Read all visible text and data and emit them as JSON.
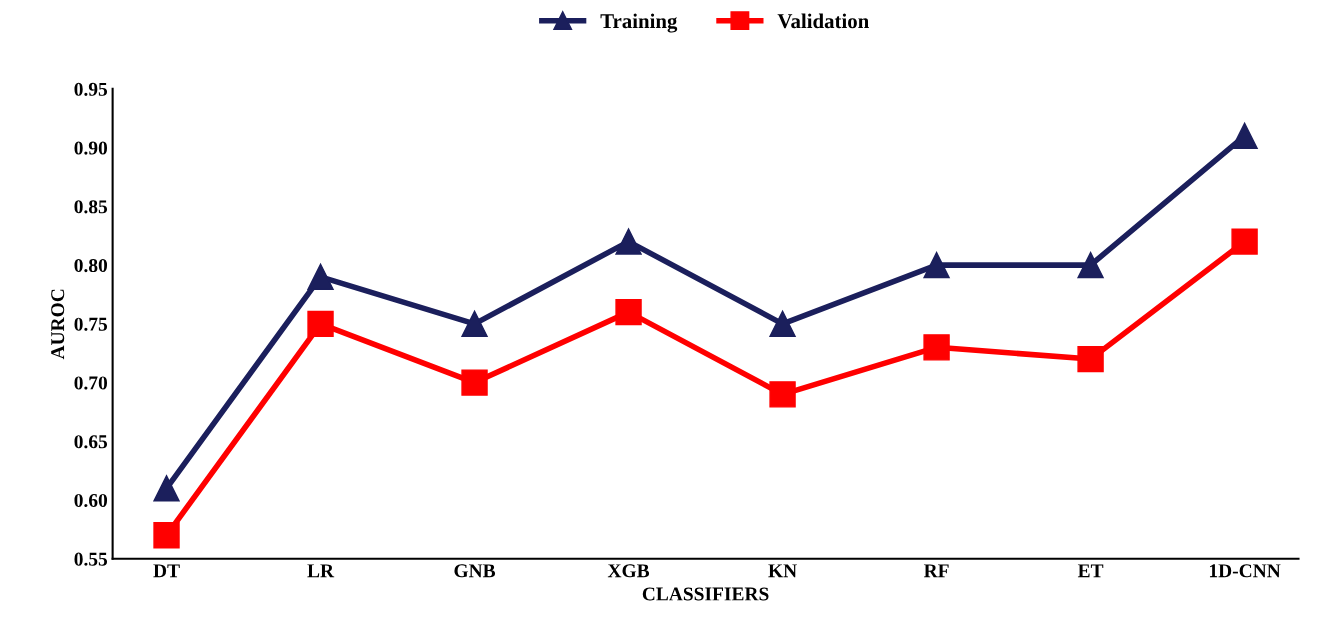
{
  "chart_data": {
    "type": "line",
    "xlabel": "CLASSIFIERS",
    "ylabel": "AUROC",
    "categories": [
      "DT",
      "LR",
      "GNB",
      "XGB",
      "KN",
      "RF",
      "ET",
      "1D-CNN"
    ],
    "series": [
      {
        "name": "Training",
        "color": "#1b1f5c",
        "marker": "triangle",
        "values": [
          0.61,
          0.79,
          0.75,
          0.82,
          0.75,
          0.8,
          0.8,
          0.91
        ]
      },
      {
        "name": "Validation",
        "color": "#ff0000",
        "marker": "square",
        "values": [
          0.57,
          0.75,
          0.7,
          0.76,
          0.69,
          0.73,
          0.72,
          0.82
        ]
      }
    ],
    "ylim": [
      0.55,
      0.95
    ],
    "yticks": [
      {
        "value": 0.55,
        "label": "0.55"
      },
      {
        "value": 0.6,
        "label": "0.60"
      },
      {
        "value": 0.65,
        "label": "0.65"
      },
      {
        "value": 0.7,
        "label": "0.70"
      },
      {
        "value": 0.75,
        "label": "0.75"
      },
      {
        "value": 0.8,
        "label": "0.80"
      },
      {
        "value": 0.85,
        "label": "0.85"
      },
      {
        "value": 0.9,
        "label": "0.90"
      },
      {
        "value": 0.95,
        "label": "0.95"
      }
    ],
    "grid": false,
    "legend": "top",
    "line_style": "solid"
  }
}
